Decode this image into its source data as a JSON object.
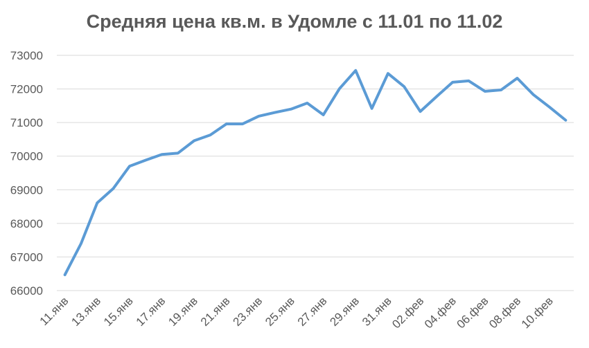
{
  "chart_data": {
    "type": "line",
    "title": "Средняя цена кв.м. в Удомле с 11.01 по 11.02",
    "categories": [
      "11.янв",
      null,
      "13.янв",
      null,
      "15.янв",
      null,
      "17.янв",
      null,
      "19.янв",
      null,
      "21.янв",
      null,
      "23.янв",
      null,
      "25.янв",
      null,
      "27.янв",
      null,
      "29.янв",
      null,
      "31.янв",
      null,
      "02.фев",
      null,
      "04.фев",
      null,
      "06.фев",
      null,
      "08.фев",
      null,
      "10.фев",
      null
    ],
    "series": [
      {
        "name": "Средняя цена",
        "color": "#5b9bd5",
        "values": [
          66470,
          67400,
          68610,
          69040,
          69700,
          69880,
          70050,
          70090,
          70460,
          70630,
          70960,
          70960,
          71190,
          71300,
          71400,
          71580,
          71230,
          72010,
          72550,
          71420,
          72460,
          72070,
          71330,
          71770,
          72200,
          72240,
          71930,
          71970,
          72320,
          71830,
          71460,
          71070
        ]
      }
    ],
    "ylim": [
      66000,
      73000
    ],
    "yticks": [
      66000,
      67000,
      68000,
      69000,
      70000,
      71000,
      72000,
      73000
    ],
    "grid": true
  }
}
